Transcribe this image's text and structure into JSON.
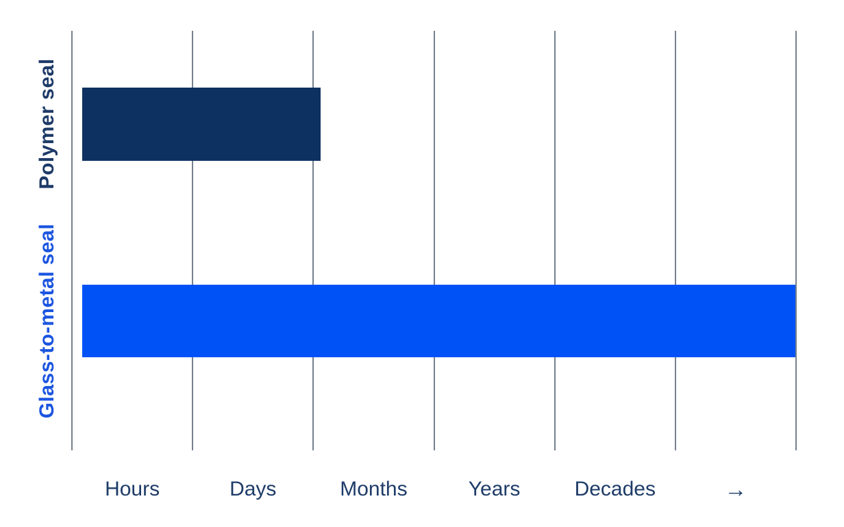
{
  "chart_data": {
    "type": "bar",
    "orientation": "horizontal",
    "title": "",
    "xlabel": "",
    "ylabel": "",
    "background": "#ffffff",
    "legend": "none",
    "x_axis": {
      "tick_labels": [
        "Hours",
        "Days",
        "Months",
        "Years",
        "Decades",
        "→"
      ],
      "scale_note": "qualitative time-duration scale, arrow indicates open-ended continuation"
    },
    "categories": [
      "Polymer seal",
      "Glass-to-metal seal"
    ],
    "gridlines": {
      "count": 7,
      "color": "#75808d",
      "orientation": "vertical"
    },
    "series": [
      {
        "name": "Polymer seal",
        "duration_reading": "from ~Hours to just past Months (~2.06 gridline units)",
        "value_gridline_units": 2.06,
        "bar_color": "#0d3161",
        "label_color": "#1d3a68",
        "bar_geometry": {
          "x0_pct": 1.42,
          "x1_pct": 34.35,
          "y0_pct": 13.54,
          "h_pct": 17.45
        }
      },
      {
        "name": "Glass-to-metal seal",
        "duration_reading": "from ~Hours to beyond Decades / open-ended (~6.0 gridline units)",
        "value_gridline_units": 6.0,
        "bar_color": "#0052f7",
        "label_color": "#1b55e0",
        "bar_geometry": {
          "x0_pct": 1.42,
          "x1_pct": 99.9,
          "y0_pct": 60.52,
          "h_pct": 17.3
        }
      }
    ],
    "tick_label_color": "#1e3c68"
  }
}
